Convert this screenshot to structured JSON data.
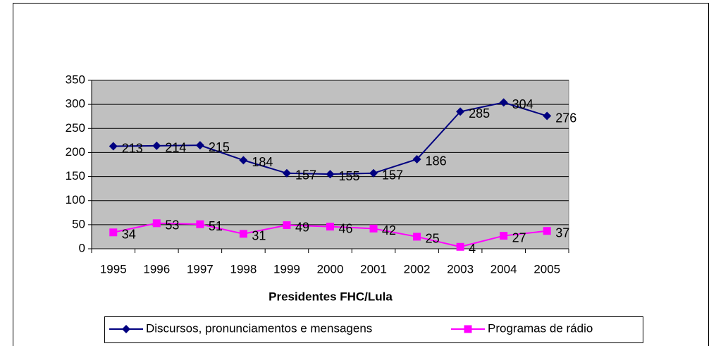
{
  "chart_data": {
    "type": "line",
    "x_label": "Presidentes FHC/Lula",
    "categories": [
      "1995",
      "1996",
      "1997",
      "1998",
      "1999",
      "2000",
      "2001",
      "2002",
      "2003",
      "2004",
      "2005"
    ],
    "series": [
      {
        "name": "Discursos, pronunciamentos e mensagens",
        "color": "#000080",
        "marker": "diamond",
        "values": [
          213,
          214,
          215,
          184,
          157,
          155,
          157,
          186,
          285,
          304,
          276
        ]
      },
      {
        "name": "Programas de rádio",
        "color": "#ff00ff",
        "marker": "square",
        "values": [
          34,
          53,
          51,
          31,
          49,
          46,
          42,
          25,
          4,
          27,
          37
        ]
      }
    ],
    "ylim": [
      0,
      350
    ],
    "yticks": [
      0,
      50,
      100,
      150,
      200,
      250,
      300,
      350
    ],
    "grid": true,
    "plot_background": "#c0c0c0"
  }
}
